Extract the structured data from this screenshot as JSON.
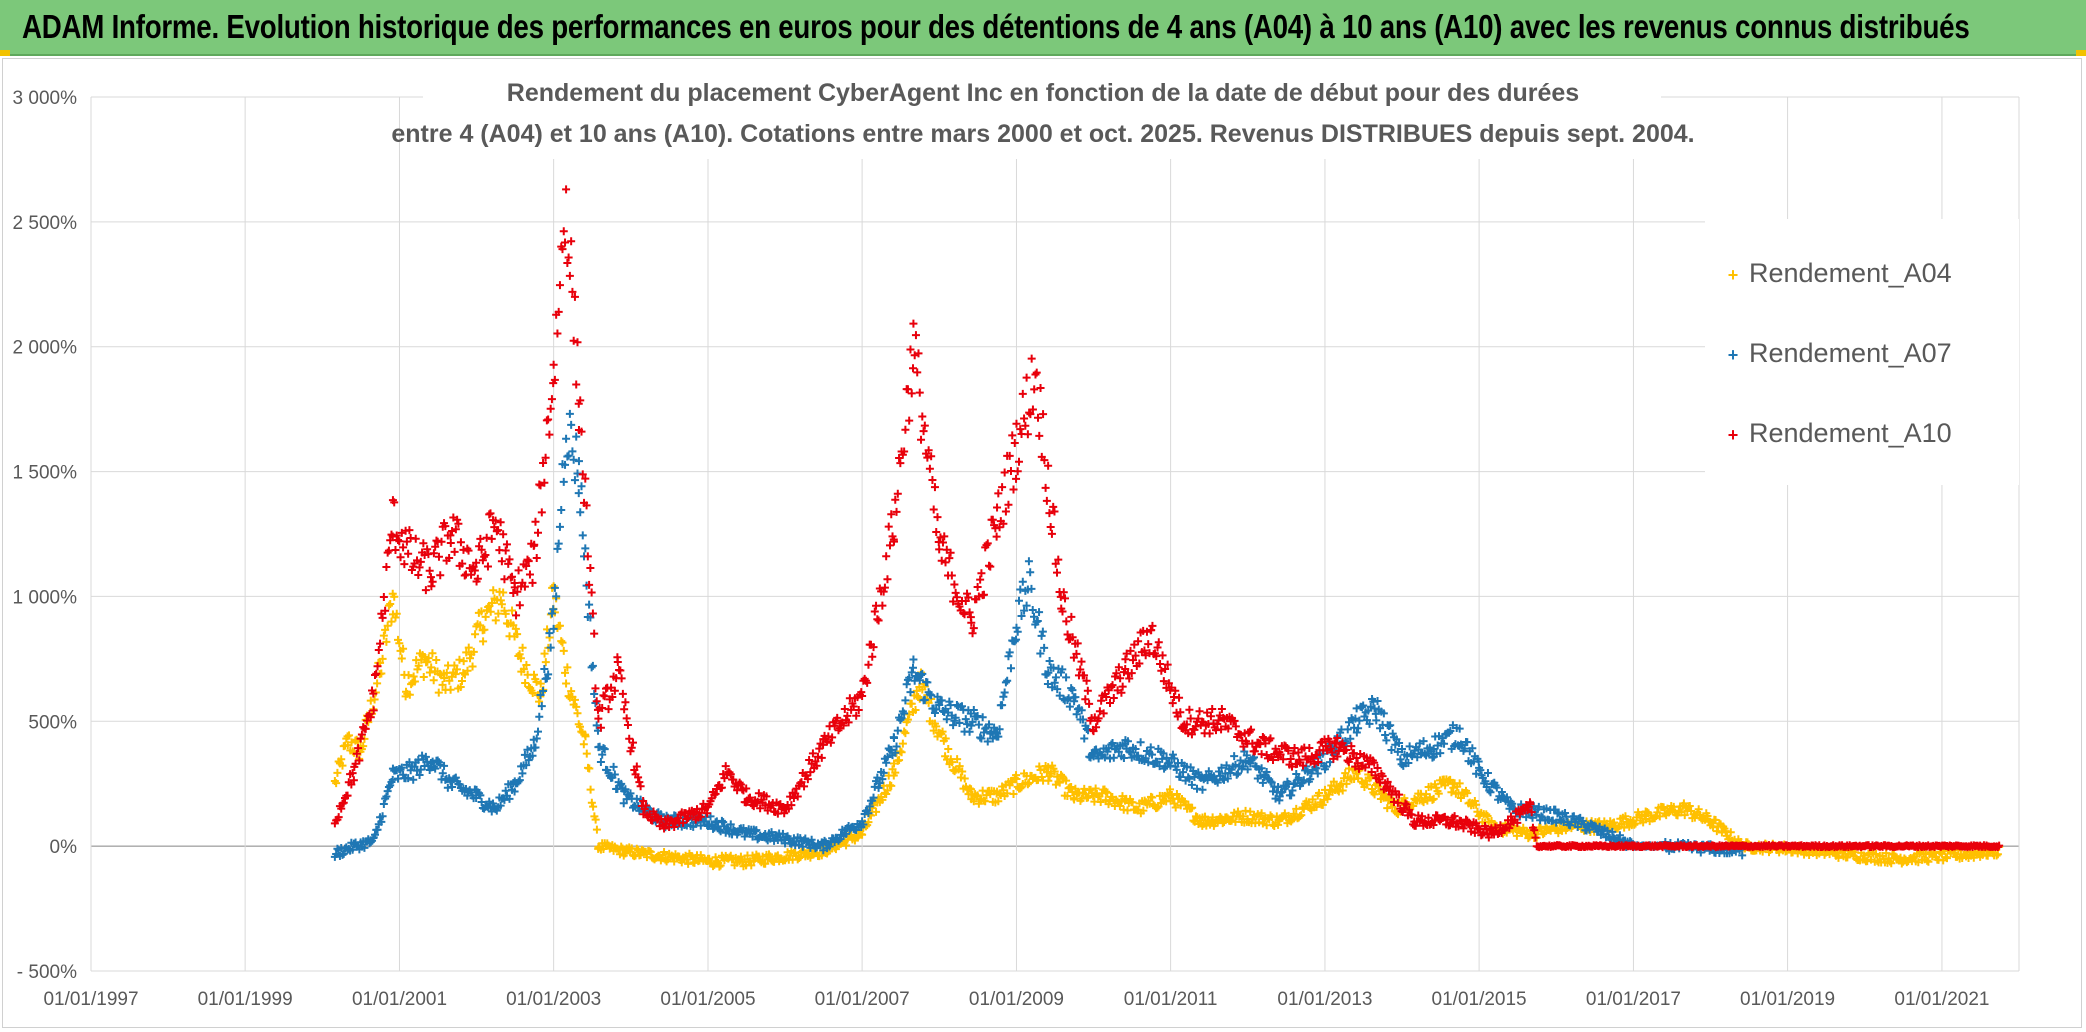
{
  "banner": {
    "title": "ADAM Informe. Evolution historique des performances en euros pour des détentions de 4 ans (A04) à 10 ans (A10) avec les revenus connus distribués",
    "background": "#7cc87a"
  },
  "chart_data": {
    "type": "scatter",
    "title_line1": "Rendement du placement CyberAgent Inc en fonction de la date de début pour des durées",
    "title_line2": "entre 4 (A04) et 10 ans (A10). Cotations entre mars 2000 et oct. 2025. Revenus DISTRIBUES depuis sept. 2004.",
    "x_axis": {
      "type": "date",
      "min": "1997-01-01",
      "max": "2022-01-01",
      "tick_labels": [
        "01/01/1997",
        "01/01/1999",
        "01/01/2001",
        "01/01/2003",
        "01/01/2005",
        "01/01/2007",
        "01/01/2009",
        "01/01/2011",
        "01/01/2013",
        "01/01/2015",
        "01/01/2017",
        "01/01/2019",
        "01/01/2021"
      ],
      "tick_years": [
        1997,
        1999,
        2001,
        2003,
        2005,
        2007,
        2009,
        2011,
        2013,
        2015,
        2017,
        2019,
        2021
      ],
      "grid": true
    },
    "y_axis": {
      "unit": "%",
      "min": -500,
      "max": 3000,
      "ticks": [
        -500,
        0,
        500,
        1000,
        1500,
        2000,
        2500,
        3000
      ],
      "tick_labels": [
        "- 500%",
        "0%",
        "500%",
        "1 000%",
        "1 500%",
        "2 000%",
        "2 500%",
        "3 000%"
      ],
      "grid": true
    },
    "marker": "+",
    "legend": {
      "placement": "right"
    },
    "series": [
      {
        "name": "Rendement_A04",
        "color": "#ffc000",
        "points": [
          [
            "2000-03-01",
            250
          ],
          [
            "2000-05-01",
            420
          ],
          [
            "2000-07-01",
            380
          ],
          [
            "2000-10-01",
            700
          ],
          [
            "2000-12-01",
            1000
          ],
          [
            "2001-02-01",
            650
          ],
          [
            "2001-05-01",
            750
          ],
          [
            "2001-08-01",
            650
          ],
          [
            "2001-11-01",
            700
          ],
          [
            "2002-02-01",
            900
          ],
          [
            "2002-05-01",
            1000
          ],
          [
            "2002-08-01",
            750
          ],
          [
            "2002-11-01",
            600
          ],
          [
            "2003-01-01",
            1000
          ],
          [
            "2003-03-01",
            700
          ],
          [
            "2003-06-01",
            400
          ],
          [
            "2003-08-01",
            0
          ],
          [
            "2003-12-01",
            -20
          ],
          [
            "2004-06-01",
            -40
          ],
          [
            "2005-01-01",
            -60
          ],
          [
            "2005-07-01",
            -60
          ],
          [
            "2006-01-01",
            -40
          ],
          [
            "2006-07-01",
            -20
          ],
          [
            "2007-01-01",
            50
          ],
          [
            "2007-06-01",
            300
          ],
          [
            "2007-10-01",
            650
          ],
          [
            "2008-02-01",
            400
          ],
          [
            "2008-06-01",
            200
          ],
          [
            "2008-10-01",
            200
          ],
          [
            "2009-01-01",
            250
          ],
          [
            "2009-06-01",
            300
          ],
          [
            "2009-10-01",
            200
          ],
          [
            "2010-03-01",
            200
          ],
          [
            "2010-08-01",
            150
          ],
          [
            "2011-01-01",
            200
          ],
          [
            "2011-06-01",
            100
          ],
          [
            "2012-01-01",
            120
          ],
          [
            "2012-06-01",
            100
          ],
          [
            "2013-01-01",
            200
          ],
          [
            "2013-06-01",
            300
          ],
          [
            "2013-12-01",
            150
          ],
          [
            "2014-04-01",
            200
          ],
          [
            "2014-09-01",
            250
          ],
          [
            "2015-03-01",
            80
          ],
          [
            "2015-09-01",
            50
          ],
          [
            "2016-03-01",
            80
          ],
          [
            "2016-09-01",
            80
          ],
          [
            "2017-03-01",
            120
          ],
          [
            "2017-09-01",
            150
          ],
          [
            "2018-01-01",
            100
          ],
          [
            "2018-06-01",
            0
          ],
          [
            "2019-01-01",
            -10
          ],
          [
            "2019-06-01",
            -20
          ],
          [
            "2020-01-01",
            -40
          ],
          [
            "2020-06-01",
            -50
          ],
          [
            "2021-01-01",
            -40
          ],
          [
            "2021-06-01",
            -30
          ],
          [
            "2021-10-01",
            -20
          ]
        ]
      },
      {
        "name": "Rendement_A07",
        "color": "#1f77b4",
        "points": [
          [
            "2000-03-01",
            -30
          ],
          [
            "2000-06-01",
            0
          ],
          [
            "2000-09-01",
            20
          ],
          [
            "2000-12-01",
            280
          ],
          [
            "2001-03-01",
            300
          ],
          [
            "2001-06-01",
            350
          ],
          [
            "2001-09-01",
            250
          ],
          [
            "2002-01-01",
            200
          ],
          [
            "2002-04-01",
            150
          ],
          [
            "2002-07-01",
            250
          ],
          [
            "2002-10-01",
            400
          ],
          [
            "2003-01-01",
            900
          ],
          [
            "2003-03-01",
            1700
          ],
          [
            "2003-05-01",
            1500
          ],
          [
            "2003-08-01",
            400
          ],
          [
            "2003-12-01",
            200
          ],
          [
            "2004-06-01",
            100
          ],
          [
            "2005-01-01",
            100
          ],
          [
            "2005-07-01",
            50
          ],
          [
            "2006-01-01",
            30
          ],
          [
            "2006-07-01",
            0
          ],
          [
            "2007-01-01",
            100
          ],
          [
            "2007-06-01",
            400
          ],
          [
            "2007-09-01",
            700
          ],
          [
            "2008-01-01",
            550
          ],
          [
            "2008-06-01",
            500
          ],
          [
            "2008-10-01",
            450
          ],
          [
            "2009-01-01",
            900
          ],
          [
            "2009-03-01",
            1050
          ],
          [
            "2009-06-01",
            700
          ],
          [
            "2009-10-01",
            600
          ],
          [
            "2010-01-01",
            350
          ],
          [
            "2010-06-01",
            400
          ],
          [
            "2010-12-01",
            350
          ],
          [
            "2011-06-01",
            250
          ],
          [
            "2012-01-01",
            350
          ],
          [
            "2012-06-01",
            200
          ],
          [
            "2013-01-01",
            350
          ],
          [
            "2013-06-01",
            500
          ],
          [
            "2013-09-01",
            550
          ],
          [
            "2014-01-01",
            350
          ],
          [
            "2014-06-01",
            400
          ],
          [
            "2014-10-01",
            450
          ],
          [
            "2015-01-01",
            300
          ],
          [
            "2015-06-01",
            150
          ],
          [
            "2016-01-01",
            120
          ],
          [
            "2016-06-01",
            80
          ],
          [
            "2017-01-01",
            0
          ],
          [
            "2017-06-01",
            0
          ],
          [
            "2018-01-01",
            -10
          ],
          [
            "2018-06-01",
            -20
          ]
        ]
      },
      {
        "name": "Rendement_A10",
        "color": "#e8000b",
        "points": [
          [
            "2000-03-01",
            100
          ],
          [
            "2000-06-01",
            300
          ],
          [
            "2000-09-01",
            600
          ],
          [
            "2000-12-01",
            1300
          ],
          [
            "2001-03-01",
            1150
          ],
          [
            "2001-06-01",
            1100
          ],
          [
            "2001-09-01",
            1250
          ],
          [
            "2002-01-01",
            1100
          ],
          [
            "2002-04-01",
            1300
          ],
          [
            "2002-07-01",
            1000
          ],
          [
            "2002-10-01",
            1150
          ],
          [
            "2003-01-01",
            1900
          ],
          [
            "2003-03-01",
            2600
          ],
          [
            "2003-05-01",
            1800
          ],
          [
            "2003-08-01",
            500
          ],
          [
            "2003-11-01",
            700
          ],
          [
            "2004-03-01",
            150
          ],
          [
            "2004-06-01",
            80
          ],
          [
            "2005-01-01",
            150
          ],
          [
            "2005-04-01",
            300
          ],
          [
            "2005-07-01",
            200
          ],
          [
            "2006-01-01",
            150
          ],
          [
            "2006-07-01",
            400
          ],
          [
            "2007-01-01",
            600
          ],
          [
            "2007-06-01",
            1300
          ],
          [
            "2007-09-01",
            2000
          ],
          [
            "2008-01-01",
            1200
          ],
          [
            "2008-06-01",
            900
          ],
          [
            "2008-10-01",
            1300
          ],
          [
            "2009-01-01",
            1600
          ],
          [
            "2009-04-01",
            1900
          ],
          [
            "2009-08-01",
            1000
          ],
          [
            "2010-01-01",
            500
          ],
          [
            "2010-06-01",
            700
          ],
          [
            "2010-10-01",
            850
          ],
          [
            "2011-03-01",
            500
          ],
          [
            "2011-09-01",
            500
          ],
          [
            "2012-03-01",
            400
          ],
          [
            "2012-09-01",
            350
          ],
          [
            "2013-03-01",
            400
          ],
          [
            "2013-09-01",
            300
          ],
          [
            "2014-03-01",
            100
          ],
          [
            "2014-09-01",
            100
          ],
          [
            "2015-03-01",
            50
          ],
          [
            "2015-06-01",
            100
          ],
          [
            "2015-09-01",
            150
          ],
          [
            "2015-10-01",
            0
          ],
          [
            "2017-01-01",
            0
          ],
          [
            "2019-01-01",
            0
          ],
          [
            "2021-10-01",
            0
          ]
        ]
      }
    ]
  }
}
